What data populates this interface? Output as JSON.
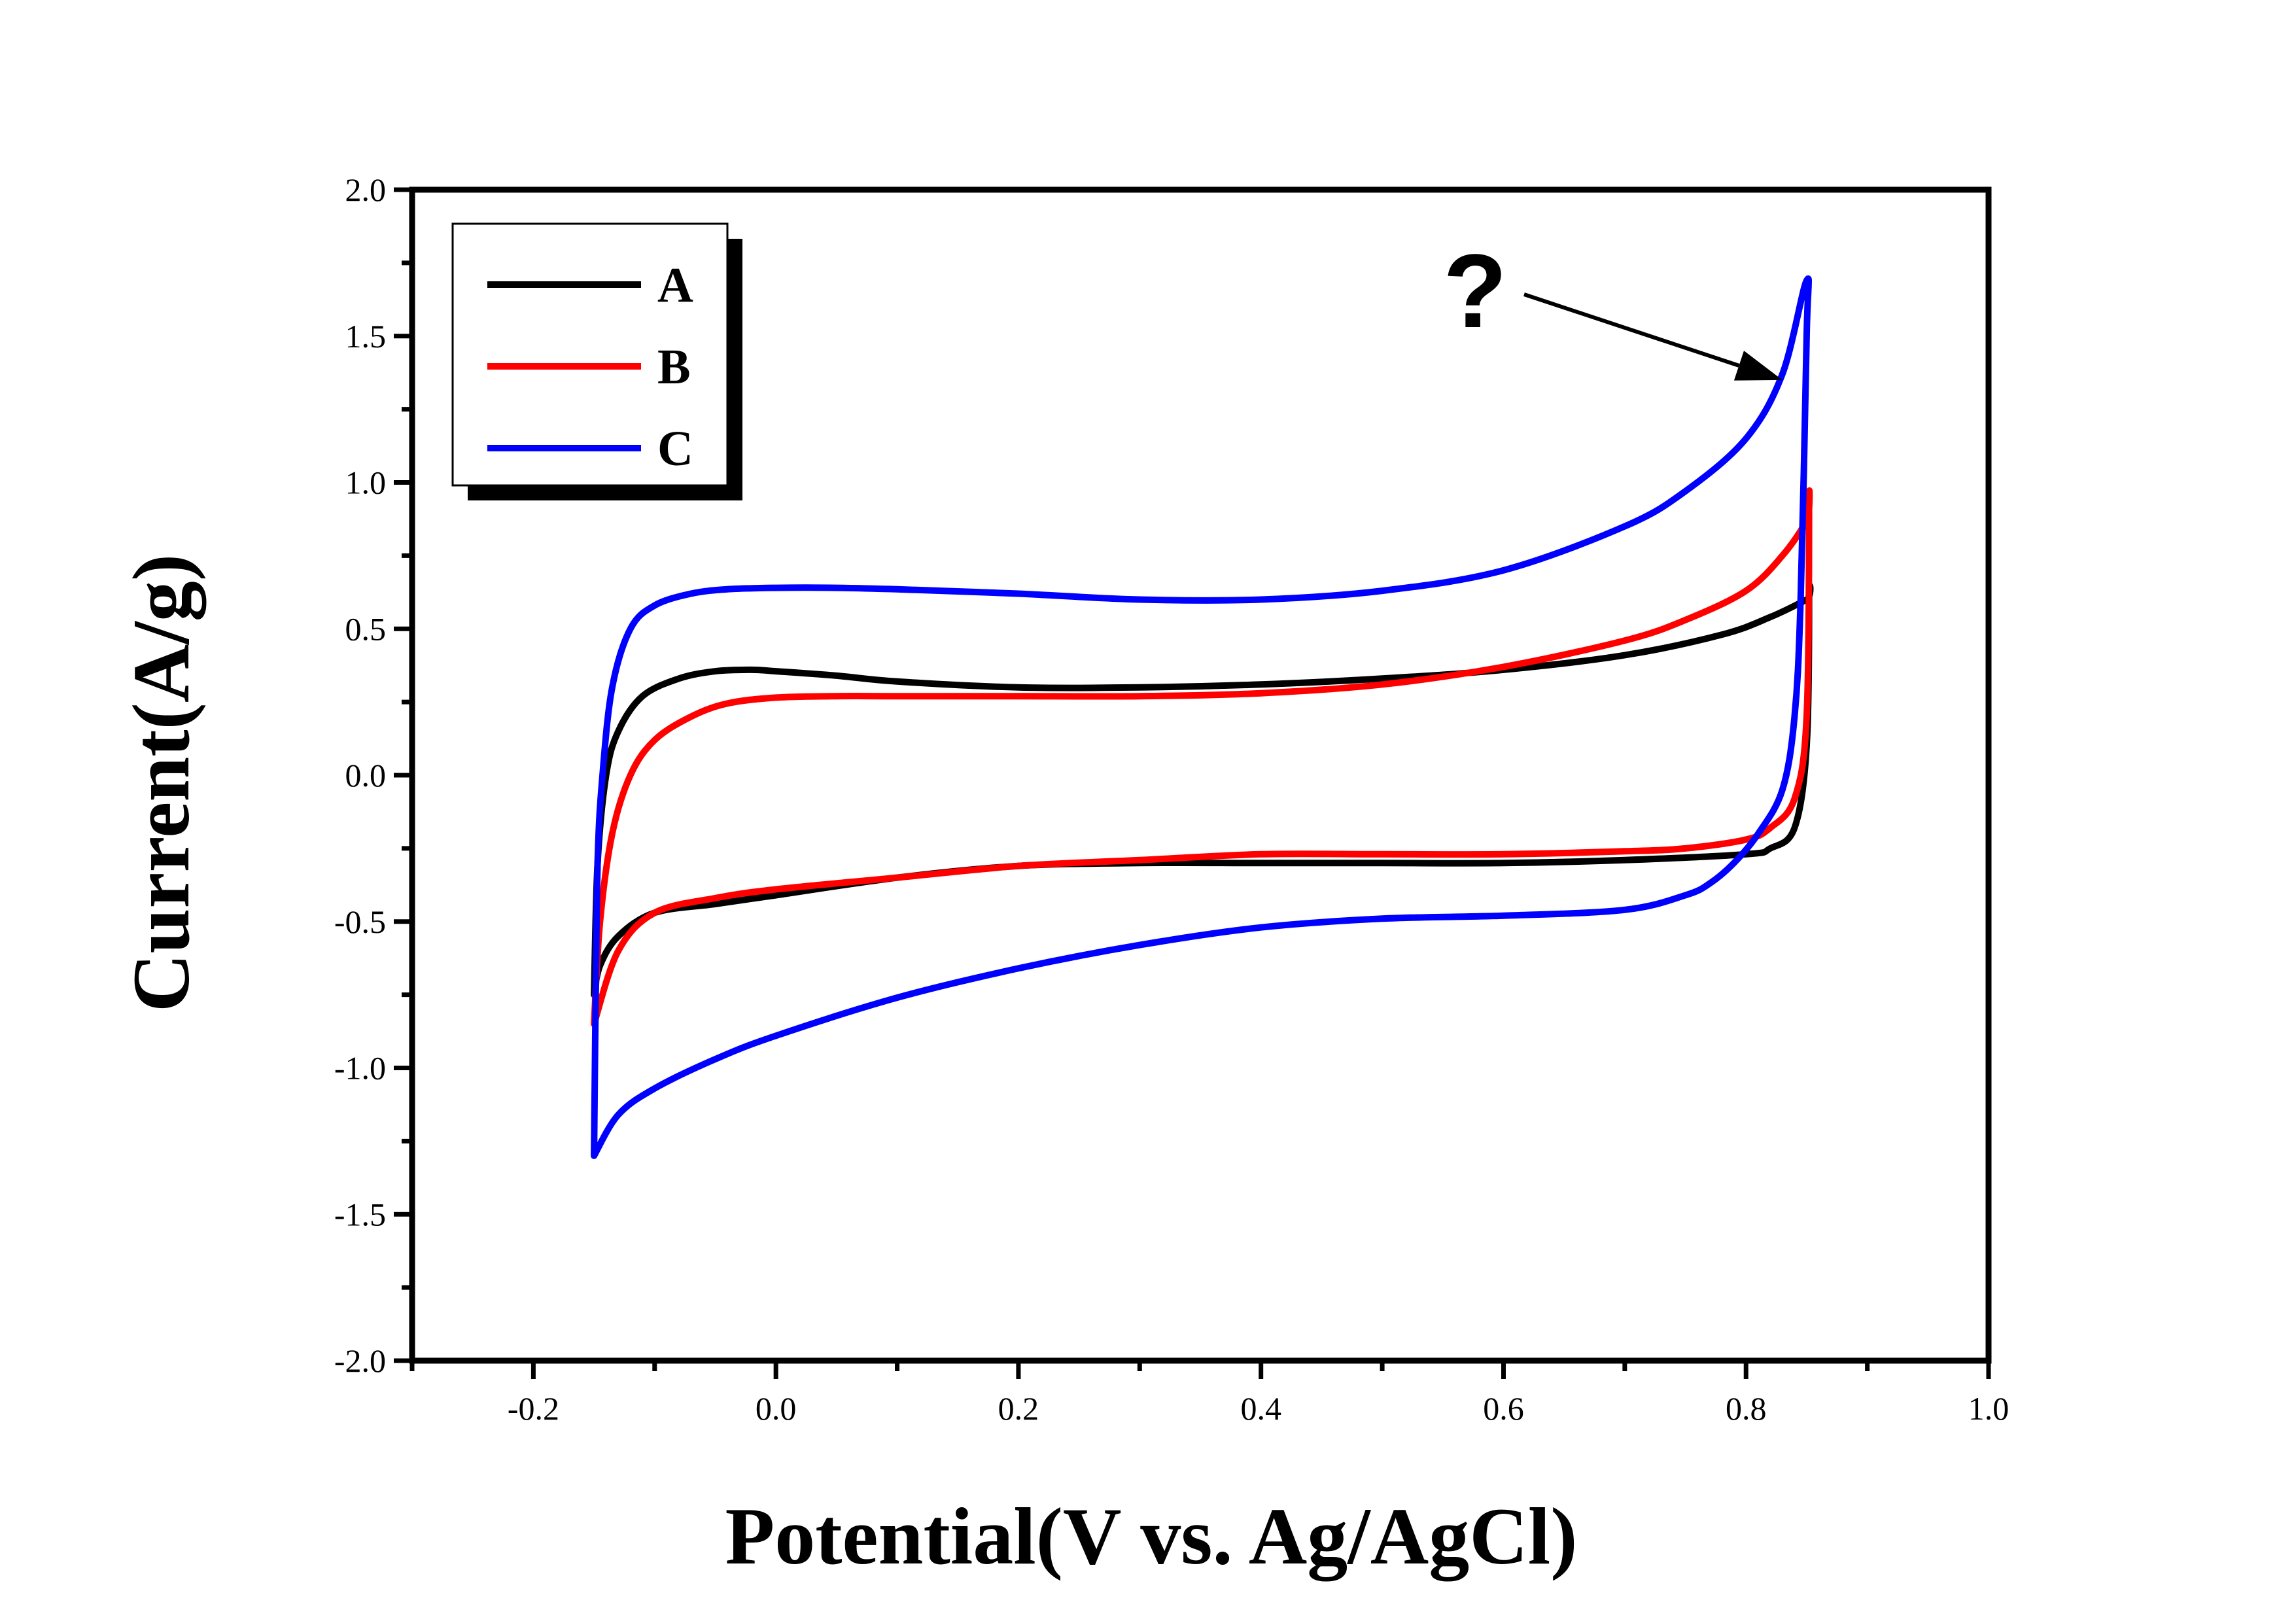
{
  "chart_data": {
    "type": "line",
    "title": "",
    "xlabel": "Potential(V vs. Ag/AgCl)",
    "ylabel": "Current(A/g)",
    "xlim": [
      -0.3,
      1.0
    ],
    "ylim": [
      -2.0,
      2.0
    ],
    "x_ticks": [
      -0.2,
      0.0,
      0.2,
      0.4,
      0.6,
      0.8,
      1.0
    ],
    "x_tick_labels": [
      "-0.2",
      "0.0",
      "0.2",
      "0.4",
      "0.6",
      "0.8",
      "1.0"
    ],
    "y_ticks": [
      -2.0,
      -1.5,
      -1.0,
      -0.5,
      0.0,
      0.5,
      1.0,
      1.5,
      2.0
    ],
    "y_tick_labels": [
      "-2.0",
      "-1.5",
      "-1.0",
      "-0.5",
      "0.0",
      "0.5",
      "1.0",
      "1.5",
      "2.0"
    ],
    "grid": false,
    "legend_position": "top-left",
    "annotation": {
      "text": "?",
      "arrow_to": [
        0.83,
        1.35
      ]
    },
    "series": [
      {
        "name": "A",
        "color": "#000000",
        "x": [
          -0.15,
          -0.147,
          -0.14,
          -0.13,
          -0.11,
          -0.08,
          -0.05,
          -0.02,
          0.0,
          0.05,
          0.1,
          0.2,
          0.3,
          0.4,
          0.5,
          0.6,
          0.7,
          0.78,
          0.82,
          0.85,
          0.852,
          0.85,
          0.84,
          0.82,
          0.8,
          0.7,
          0.6,
          0.5,
          0.4,
          0.3,
          0.2,
          0.1,
          0.0,
          -0.05,
          -0.1,
          -0.13,
          -0.145,
          -0.15
        ],
        "y": [
          -0.75,
          -0.3,
          0.0,
          0.15,
          0.27,
          0.33,
          0.355,
          0.36,
          0.355,
          0.34,
          0.32,
          0.3,
          0.3,
          0.31,
          0.33,
          0.36,
          0.41,
          0.48,
          0.54,
          0.6,
          0.61,
          0.1,
          -0.18,
          -0.25,
          -0.27,
          -0.29,
          -0.3,
          -0.3,
          -0.3,
          -0.3,
          -0.31,
          -0.35,
          -0.41,
          -0.44,
          -0.47,
          -0.55,
          -0.65,
          -0.75
        ]
      },
      {
        "name": "B",
        "color": "#ff0000",
        "x": [
          -0.15,
          -0.145,
          -0.135,
          -0.12,
          -0.1,
          -0.07,
          -0.04,
          0.0,
          0.05,
          0.1,
          0.2,
          0.3,
          0.4,
          0.5,
          0.6,
          0.7,
          0.75,
          0.8,
          0.83,
          0.85,
          0.852,
          0.85,
          0.84,
          0.82,
          0.8,
          0.75,
          0.7,
          0.6,
          0.5,
          0.4,
          0.3,
          0.2,
          0.1,
          0.0,
          -0.05,
          -0.1,
          -0.13,
          -0.15
        ],
        "y": [
          -0.85,
          -0.5,
          -0.2,
          0.0,
          0.12,
          0.2,
          0.245,
          0.265,
          0.27,
          0.27,
          0.27,
          0.27,
          0.28,
          0.31,
          0.37,
          0.46,
          0.53,
          0.63,
          0.75,
          0.87,
          0.93,
          0.2,
          -0.08,
          -0.18,
          -0.22,
          -0.25,
          -0.26,
          -0.27,
          -0.27,
          -0.27,
          -0.29,
          -0.31,
          -0.35,
          -0.39,
          -0.42,
          -0.47,
          -0.6,
          -0.85
        ]
      },
      {
        "name": "C",
        "color": "#0000ff",
        "x": [
          -0.15,
          -0.149,
          -0.147,
          -0.143,
          -0.135,
          -0.12,
          -0.1,
          -0.07,
          -0.04,
          0.0,
          0.05,
          0.1,
          0.2,
          0.3,
          0.4,
          0.5,
          0.6,
          0.7,
          0.75,
          0.8,
          0.83,
          0.85,
          0.85,
          0.845,
          0.84,
          0.83,
          0.81,
          0.79,
          0.77,
          0.75,
          0.7,
          0.6,
          0.5,
          0.4,
          0.3,
          0.2,
          0.1,
          0.0,
          -0.05,
          -0.1,
          -0.13,
          -0.15
        ],
        "y": [
          -1.3,
          -0.9,
          -0.3,
          0.0,
          0.3,
          0.5,
          0.58,
          0.62,
          0.635,
          0.64,
          0.64,
          0.635,
          0.62,
          0.6,
          0.6,
          0.63,
          0.7,
          0.85,
          0.97,
          1.15,
          1.37,
          1.69,
          1.5,
          0.6,
          0.2,
          -0.05,
          -0.2,
          -0.3,
          -0.37,
          -0.41,
          -0.46,
          -0.48,
          -0.49,
          -0.52,
          -0.58,
          -0.66,
          -0.76,
          -0.89,
          -0.97,
          -1.07,
          -1.16,
          -1.3
        ]
      }
    ]
  }
}
